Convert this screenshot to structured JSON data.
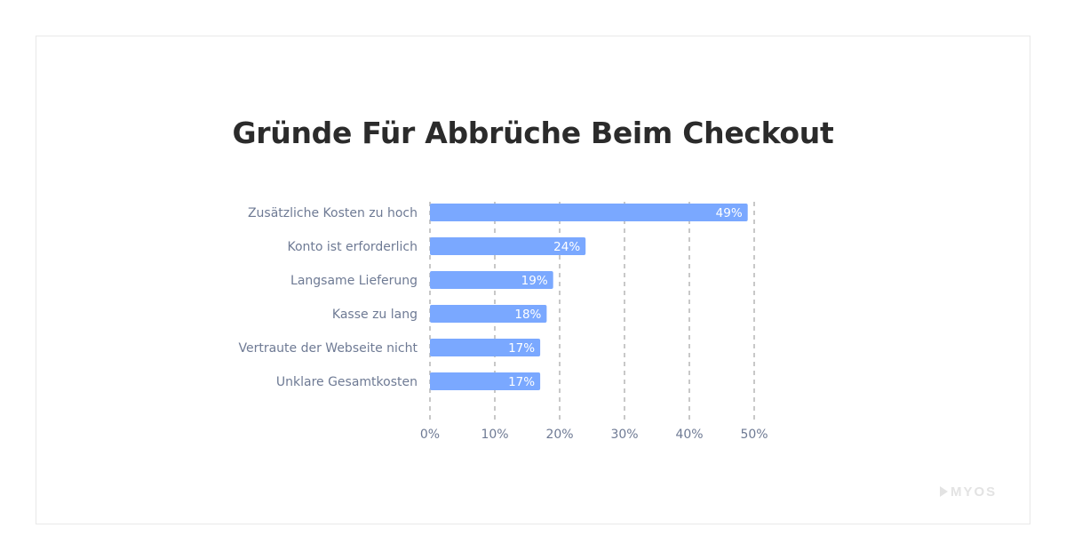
{
  "branding": {
    "watermark": "MYOS",
    "watermark_color": "#e3e3e3"
  },
  "colors": {
    "bar": "#7aa8ff",
    "grid": "#b5b5b5",
    "category_label": "#6e7a94",
    "tick_label": "#6e7a94",
    "value_label": "#ffffff",
    "title": "#2b2b2b"
  },
  "chart_data": {
    "type": "bar",
    "orientation": "horizontal",
    "title": "Gründe Für Abbrüche Beim Checkout",
    "categories": [
      "Zusätzliche Kosten zu hoch",
      "Konto ist erforderlich",
      "Langsame Lieferung",
      "Kasse zu lang",
      "Vertraute der Webseite nicht",
      "Unklare Gesamtkosten"
    ],
    "values": [
      49,
      24,
      19,
      18,
      17,
      17
    ],
    "value_labels": [
      "49%",
      "24%",
      "19%",
      "18%",
      "17%",
      "17%"
    ],
    "xlim": [
      0,
      50
    ],
    "xticks": [
      0,
      10,
      20,
      30,
      40,
      50
    ],
    "xtick_labels": [
      "0%",
      "10%",
      "20%",
      "30%",
      "40%",
      "50%"
    ],
    "xlabel": "",
    "ylabel": "",
    "grid": "vertical dashed",
    "legend": "none"
  }
}
